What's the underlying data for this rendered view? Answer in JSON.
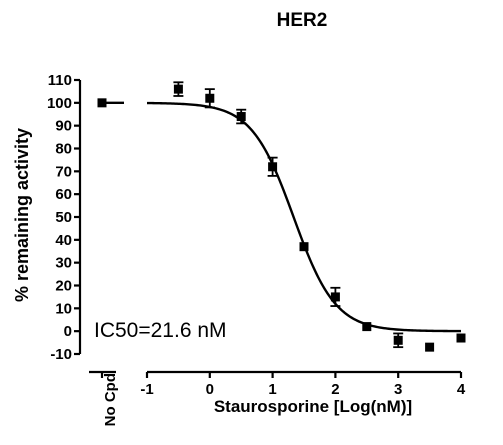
{
  "chart_data": {
    "type": "scatter",
    "title": "HER2",
    "xlabel": "Staurosporine [Log(nM)]",
    "ylabel": "% remaining activity",
    "control_label": "No Cpd",
    "annotation": "IC50=21.6 nM",
    "xlim": [
      -1,
      4
    ],
    "ylim": [
      -10,
      110
    ],
    "x_ticks": [
      "-1",
      "0",
      "1",
      "2",
      "3",
      "4"
    ],
    "y_ticks": [
      "-10",
      "0",
      "10",
      "20",
      "30",
      "40",
      "50",
      "60",
      "70",
      "80",
      "90",
      "100",
      "110"
    ],
    "control_point": {
      "y": 100
    },
    "points": [
      {
        "x": -0.5,
        "y": 106,
        "err": 3
      },
      {
        "x": 0.0,
        "y": 102,
        "err": 4
      },
      {
        "x": 0.5,
        "y": 94,
        "err": 3
      },
      {
        "x": 1.0,
        "y": 72,
        "err": 4
      },
      {
        "x": 1.5,
        "y": 37,
        "err": 0
      },
      {
        "x": 2.0,
        "y": 15,
        "err": 4
      },
      {
        "x": 2.5,
        "y": 2,
        "err": 0
      },
      {
        "x": 3.0,
        "y": -4,
        "err": 3
      },
      {
        "x": 3.5,
        "y": -7,
        "err": 0
      },
      {
        "x": 4.0,
        "y": -3,
        "err": 0
      }
    ],
    "fit": {
      "model": "sigmoid",
      "top": 100,
      "bottom": 0,
      "log_ic50": 1.334,
      "hill": -1.3
    },
    "grid": false,
    "legend": "none"
  }
}
